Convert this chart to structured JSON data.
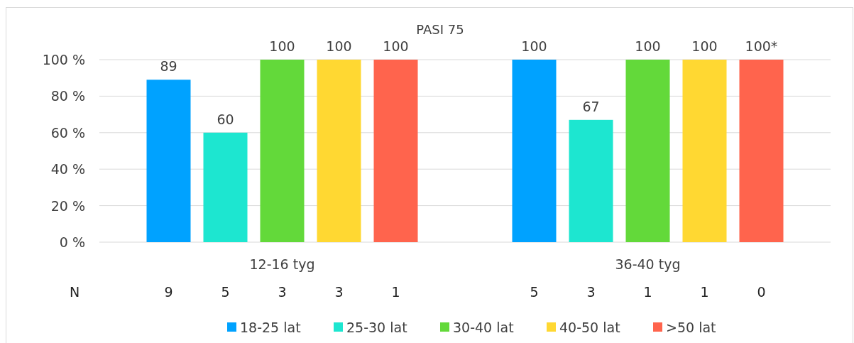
{
  "chart_data": {
    "type": "bar",
    "title": "PASI 75",
    "categories": [
      "12-16 tyg",
      "36-40 tyg"
    ],
    "series": [
      {
        "name": "18-25 lat",
        "color": "#00a2ff",
        "values": [
          89,
          100
        ],
        "value_labels": [
          "89",
          "100"
        ]
      },
      {
        "name": "25-30 lat",
        "color": "#1de6d0",
        "values": [
          60,
          67
        ],
        "value_labels": [
          "60",
          "67"
        ]
      },
      {
        "name": "30-40 lat",
        "color": "#63d93a",
        "values": [
          100,
          100
        ],
        "value_labels": [
          "100",
          "100"
        ]
      },
      {
        "name": "40-50 lat",
        "color": "#ffd832",
        "values": [
          100,
          100
        ],
        "value_labels": [
          "100",
          "100"
        ]
      },
      {
        "name": ">50 lat",
        "color": "#ff644d",
        "values": [
          100,
          100
        ],
        "value_labels": [
          "100",
          "100*"
        ]
      }
    ],
    "ylim": [
      0,
      100
    ],
    "yticks": [
      {
        "value": 0,
        "label": "0 %"
      },
      {
        "value": 20,
        "label": "20 %"
      },
      {
        "value": 40,
        "label": "40 %"
      },
      {
        "value": 60,
        "label": "60 %"
      },
      {
        "value": 80,
        "label": "80 %"
      },
      {
        "value": 100,
        "label": "100 %"
      }
    ],
    "grid": "y",
    "legend": "bottom",
    "annotations": [
      "N",
      "9",
      "5",
      "3",
      "3",
      "1",
      "5",
      "3",
      "1",
      "1",
      "0"
    ]
  }
}
